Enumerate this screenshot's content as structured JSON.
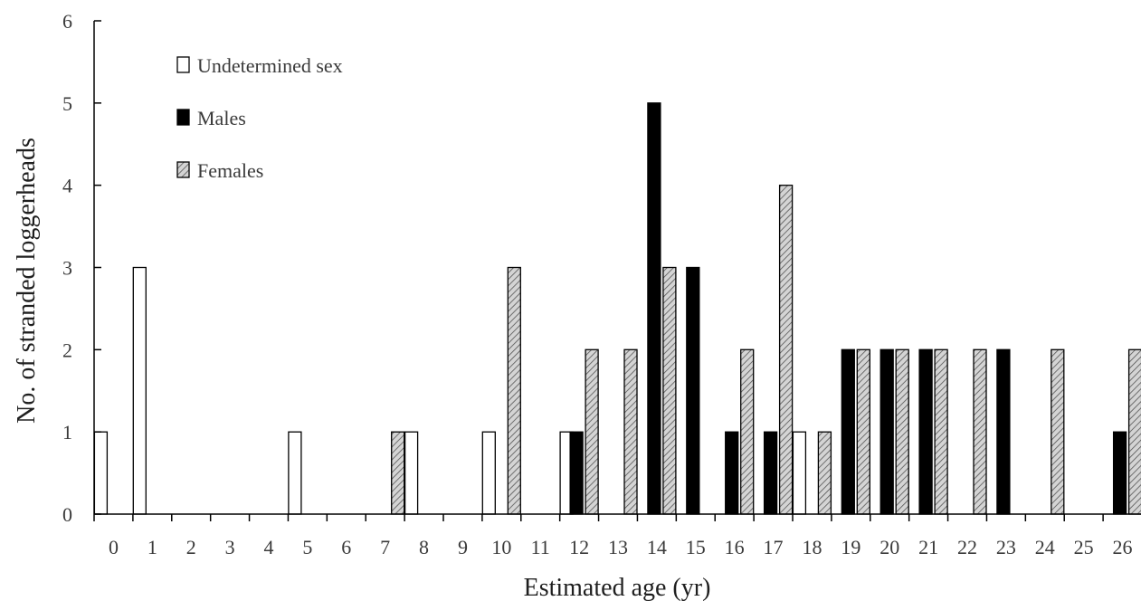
{
  "chart_data": {
    "type": "bar",
    "xlabel": "Estimated age (yr)",
    "ylabel": "No. of stranded loggerheads",
    "ylim": [
      0,
      6
    ],
    "yticks": [
      "0",
      "1",
      "2",
      "3",
      "4",
      "5",
      "6"
    ],
    "categories": [
      "0",
      "1",
      "2",
      "3",
      "4",
      "5",
      "6",
      "7",
      "8",
      "9",
      "10",
      "11",
      "12",
      "13",
      "14",
      "15",
      "16",
      "17",
      "18",
      "19",
      "20",
      "21",
      "22",
      "23",
      "24",
      "25",
      "26"
    ],
    "legend_position": "top-left",
    "grid": false,
    "series": [
      {
        "name": "Undetermined sex",
        "fill": "#ffffff",
        "pattern": "none",
        "values": [
          1,
          3,
          0,
          0,
          0,
          1,
          0,
          0,
          1,
          0,
          1,
          0,
          1,
          0,
          0,
          0,
          0,
          0,
          1,
          0,
          0,
          0,
          0,
          0,
          0,
          0,
          0
        ]
      },
      {
        "name": "Males",
        "fill": "#000000",
        "pattern": "none",
        "values": [
          0,
          0,
          0,
          0,
          0,
          0,
          0,
          0,
          0,
          0,
          0,
          0,
          1,
          0,
          5,
          3,
          1,
          1,
          0,
          2,
          2,
          2,
          0,
          2,
          0,
          0,
          1
        ]
      },
      {
        "name": "Females",
        "fill": "#d0d0d0",
        "pattern": "diagonal-hatch",
        "values": [
          0,
          0,
          0,
          0,
          0,
          0,
          0,
          1,
          0,
          0,
          3,
          0,
          2,
          2,
          3,
          0,
          2,
          4,
          1,
          2,
          2,
          2,
          2,
          0,
          2,
          0,
          2
        ]
      }
    ]
  }
}
